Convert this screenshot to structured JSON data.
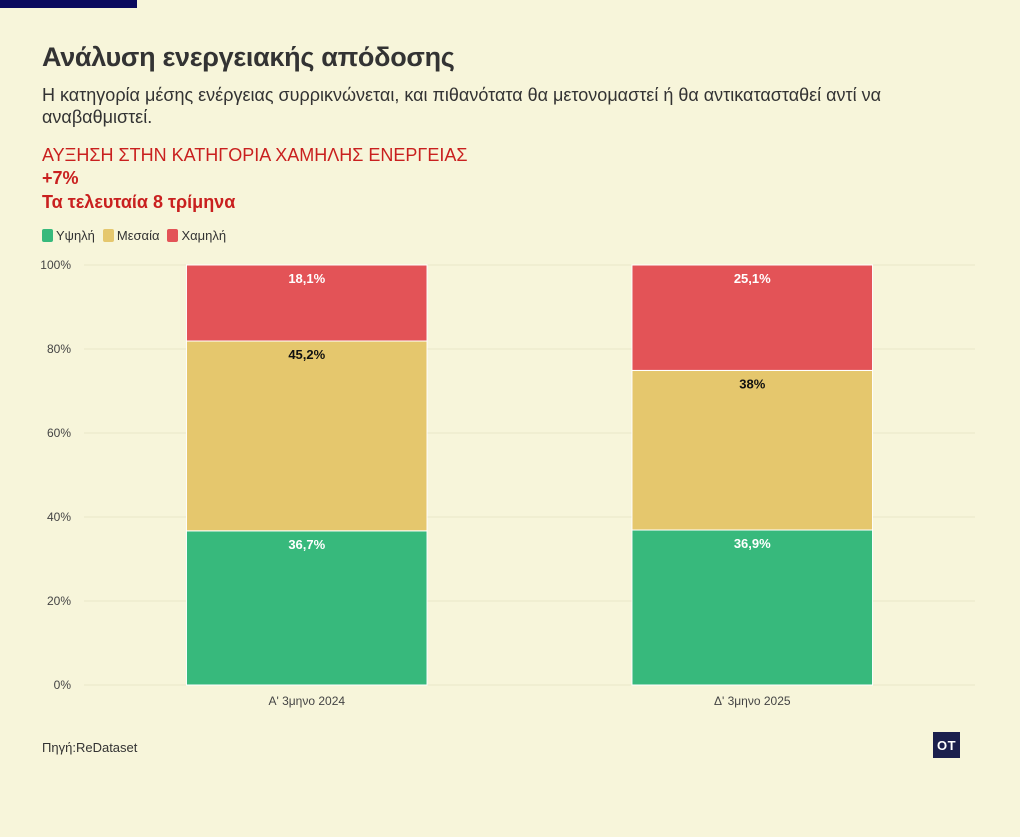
{
  "header": {
    "title": "Ανάλυση ενεργειακής απόδοσης",
    "subtitle": "Η κατηγορία μέσης ενέργειας συρρικνώνεται, και πιθανότατα θα μετονομαστεί ή θα αντικατασταθεί αντί να αναβαθμιστεί.",
    "kicker": "ΑΥΞΗΣΗ ΣΤΗΝ ΚΑΤΗΓΟΡΙΑ ΧΑΜΗΛΗΣ ΕΝΕΡΓΕΙΑΣ",
    "big_value": "+7%",
    "period": "Τα τελευταία 8 τρίμηνα"
  },
  "legend": [
    {
      "label": "Υψηλή",
      "color": "#37b97c"
    },
    {
      "label": "Μεσαία",
      "color": "#e5c76d"
    },
    {
      "label": "Χαμηλή",
      "color": "#e35357"
    }
  ],
  "chart_data": {
    "type": "bar",
    "stacked": true,
    "categories": [
      "Α' 3μηνο 2024",
      "Δ' 3μηνο 2025"
    ],
    "series": [
      {
        "name": "Υψηλή",
        "color": "#37b97c",
        "values": [
          36.7,
          36.9
        ],
        "labels": [
          "36,7%",
          "36,9%"
        ],
        "label_color": "#ffffff"
      },
      {
        "name": "Μεσαία",
        "color": "#e5c76d",
        "values": [
          45.2,
          38
        ],
        "labels": [
          "45,2%",
          "38%"
        ],
        "label_color": "#111111"
      },
      {
        "name": "Χαμηλή",
        "color": "#e35357",
        "values": [
          18.1,
          25.1
        ],
        "labels": [
          "18,1%",
          "25,1%"
        ],
        "label_color": "#ffffff"
      }
    ],
    "ylim": [
      0,
      100
    ],
    "yticks": [
      0,
      20,
      40,
      60,
      80,
      100
    ],
    "ytick_labels": [
      "0%",
      "20%",
      "40%",
      "60%",
      "80%",
      "100%"
    ],
    "grid": true,
    "xlabel": "",
    "ylabel": ""
  },
  "footer": {
    "source": "Πηγή:ReDataset",
    "logo_text": "OT"
  }
}
